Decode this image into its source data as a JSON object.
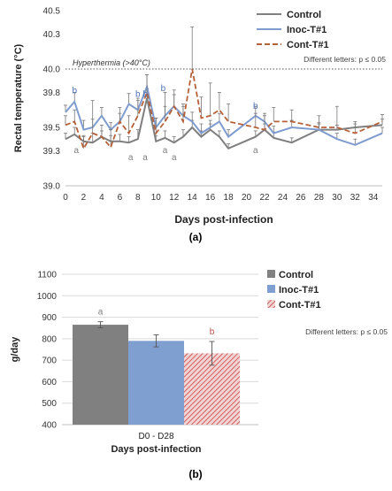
{
  "chart_data": [
    {
      "type": "line",
      "panel_label": "(a)",
      "xlabel": "Days post-infection",
      "ylabel": "Rectal temperature (°C)",
      "xlim": [
        0,
        35
      ],
      "ylim": [
        39.0,
        40.5
      ],
      "xticks": [
        "0",
        "2",
        "4",
        "6",
        "8",
        "10",
        "12",
        "14",
        "16",
        "18",
        "20",
        "22",
        "24",
        "26",
        "28",
        "30",
        "32",
        "34"
      ],
      "yticks": [
        "39.0",
        "39.3",
        "39.5",
        "39.8",
        "40.0",
        "40.3",
        "40.5"
      ],
      "grid": false,
      "legend_position": "top-right",
      "threshold": {
        "value": 40.0,
        "label": "Hyperthermia (>40°C)"
      },
      "note": "Different letters: p ≤ 0.05",
      "x": [
        0,
        1,
        2,
        3,
        4,
        5,
        6,
        7,
        8,
        9,
        10,
        11,
        12,
        13,
        14,
        15,
        16,
        17,
        18,
        21,
        22,
        23,
        25,
        28,
        30,
        32,
        35
      ],
      "series": [
        {
          "name": "Control",
          "color": "#7f7f7f",
          "style": "solid",
          "values": [
            39.4,
            39.44,
            39.38,
            39.37,
            39.42,
            39.38,
            39.38,
            39.37,
            39.4,
            39.75,
            39.38,
            39.41,
            39.37,
            39.42,
            39.5,
            39.42,
            39.48,
            39.42,
            39.32,
            39.42,
            39.48,
            39.41,
            39.37,
            39.48,
            39.48,
            39.5,
            39.52
          ],
          "error": [
            0.05,
            0.06,
            0.05,
            0.08,
            0.05,
            0.05,
            0.06,
            0.05,
            0.08,
            0.08,
            0.05,
            0.06,
            0.05,
            0.06,
            0.06,
            0.05,
            0.05,
            0.05,
            0.04,
            0.05,
            0.05,
            0.05,
            0.04,
            0.05,
            0.04,
            0.05,
            0.05
          ]
        },
        {
          "name": "Inoc-T#1",
          "color": "#7f9ccf",
          "style": "solid",
          "values": [
            39.63,
            39.72,
            39.48,
            39.5,
            39.6,
            39.48,
            39.55,
            39.7,
            39.65,
            39.85,
            39.5,
            39.6,
            39.68,
            39.6,
            39.55,
            39.45,
            39.5,
            39.55,
            39.42,
            39.6,
            39.55,
            39.45,
            39.5,
            39.48,
            39.4,
            39.35,
            39.45
          ],
          "error": [
            0.06,
            0.08,
            0.08,
            0.07,
            0.07,
            0.06,
            0.07,
            0.09,
            0.08,
            0.1,
            0.08,
            0.08,
            0.1,
            0.08,
            0.08,
            0.08,
            0.06,
            0.07,
            0.06,
            0.08,
            0.07,
            0.06,
            0.06,
            0.06,
            0.05,
            0.05,
            0.05
          ]
        },
        {
          "name": "Cont-T#1",
          "color": "#b5613a",
          "style": "dashed",
          "values": [
            39.52,
            39.55,
            39.32,
            39.45,
            39.42,
            39.33,
            39.55,
            39.45,
            39.6,
            39.8,
            39.45,
            39.55,
            39.68,
            39.55,
            40.0,
            39.58,
            39.6,
            39.65,
            39.55,
            39.5,
            39.48,
            39.55,
            39.55,
            39.5,
            39.5,
            39.45,
            39.55
          ],
          "error": [
            0.08,
            0.1,
            0.1,
            0.28,
            0.1,
            0.15,
            0.12,
            0.15,
            0.15,
            0.15,
            0.13,
            0.25,
            0.14,
            0.15,
            0.36,
            0.18,
            0.28,
            0.15,
            0.15,
            0.12,
            0.12,
            0.12,
            0.1,
            0.1,
            0.18,
            0.08,
            0.06
          ]
        }
      ],
      "annotations": [
        {
          "x": 1,
          "y": 39.79,
          "text": "b",
          "color": "#4f73b8"
        },
        {
          "x": 8,
          "y": 39.76,
          "text": "b",
          "color": "#4f73b8"
        },
        {
          "x": 8.8,
          "y": 39.76,
          "text": "b",
          "color": "#4f73b8"
        },
        {
          "x": 10.8,
          "y": 39.81,
          "text": "b",
          "color": "#4f73b8"
        },
        {
          "x": 21,
          "y": 39.66,
          "text": "b",
          "color": "#4f73b8"
        },
        {
          "x": 1.2,
          "y": 39.28,
          "text": "a",
          "color": "#7f7f7f"
        },
        {
          "x": 7.2,
          "y": 39.22,
          "text": "a",
          "color": "#7f7f7f"
        },
        {
          "x": 8.8,
          "y": 39.22,
          "text": "a",
          "color": "#7f7f7f"
        },
        {
          "x": 11,
          "y": 39.28,
          "text": "a",
          "color": "#7f7f7f"
        },
        {
          "x": 12,
          "y": 39.22,
          "text": "a",
          "color": "#7f7f7f"
        },
        {
          "x": 21,
          "y": 39.28,
          "text": "a",
          "color": "#7f7f7f"
        }
      ]
    },
    {
      "type": "bar",
      "panel_label": "(b)",
      "xlabel": "Days post-infection",
      "ylabel": "g/day",
      "categories": [
        "D0 - D28"
      ],
      "ylim": [
        400,
        1100
      ],
      "yticks": [
        "400",
        "500",
        "600",
        "700",
        "800",
        "900",
        "1000",
        "1100"
      ],
      "grid": true,
      "legend_position": "right",
      "note": "Different letters: p ≤ 0.05",
      "series": [
        {
          "name": "Control",
          "values": [
            865
          ],
          "error": [
            14
          ],
          "color": "#808080",
          "fill": "solid",
          "letter": "a",
          "letter_color": "#7f7f7f"
        },
        {
          "name": "Inoc-T#1",
          "values": [
            790
          ],
          "error": [
            28
          ],
          "color": "#7f9fd0",
          "fill": "solid",
          "letter": "",
          "letter_color": "#7f9fd0"
        },
        {
          "name": "Cont-T#1",
          "values": [
            732
          ],
          "error": [
            55
          ],
          "color": "#d06060",
          "fill": "hatch",
          "letter": "b",
          "letter_color": "#c0504d"
        }
      ]
    }
  ]
}
